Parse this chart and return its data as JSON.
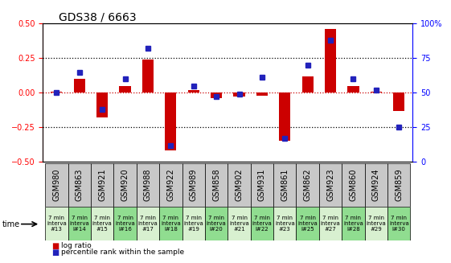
{
  "title": "GDS38 / 6663",
  "samples": [
    "GSM980",
    "GSM863",
    "GSM921",
    "GSM920",
    "GSM988",
    "GSM922",
    "GSM989",
    "GSM858",
    "GSM902",
    "GSM931",
    "GSM861",
    "GSM862",
    "GSM923",
    "GSM860",
    "GSM924",
    "GSM859"
  ],
  "time_labels": [
    "7 min\ninterva\n#13",
    "7 min\ninterva\nl#14",
    "7 min\ninterva\n#15",
    "7 min\ninterva\nl#16",
    "7 min\ninterva\n#17",
    "7 min\ninterva\nl#18",
    "7 min\ninterva\n#19",
    "7 min\ninterva\nl#20",
    "7 min\ninterva\n#21",
    "7 min\ninterva\nl#22",
    "7 min\ninterva\n#23",
    "7 min\ninterva\nl#25",
    "7 min\ninterva\n#27",
    "7 min\ninterva\nl#28",
    "7 min\ninterva\n#29",
    "7 min\ninterva\nl#30"
  ],
  "log_ratio": [
    0.01,
    0.1,
    -0.18,
    0.05,
    0.24,
    -0.42,
    0.02,
    -0.04,
    -0.03,
    -0.02,
    -0.35,
    0.12,
    0.46,
    0.05,
    0.01,
    -0.13
  ],
  "percentile": [
    50,
    65,
    38,
    60,
    82,
    12,
    55,
    47,
    49,
    61,
    17,
    70,
    88,
    60,
    52,
    25
  ],
  "bar_color": "#cc0000",
  "dot_color": "#2222bb",
  "bg_color": "#ffffff",
  "plot_bg": "#ffffff",
  "ylim_left": [
    -0.5,
    0.5
  ],
  "ylim_right": [
    0,
    100
  ],
  "yticks_left": [
    -0.5,
    -0.25,
    0.0,
    0.25,
    0.5
  ],
  "yticks_right": [
    0,
    25,
    50,
    75,
    100
  ],
  "zero_line_color": "#cc0000",
  "dotted_line_color": "#000000",
  "cell_bg_gray": "#c8c8c8",
  "cell_bg_green_light": "#d8f0d0",
  "cell_bg_green": "#90dd90",
  "time_label_fontsize": 5.0,
  "sample_label_fontsize": 7,
  "bar_width": 0.5
}
